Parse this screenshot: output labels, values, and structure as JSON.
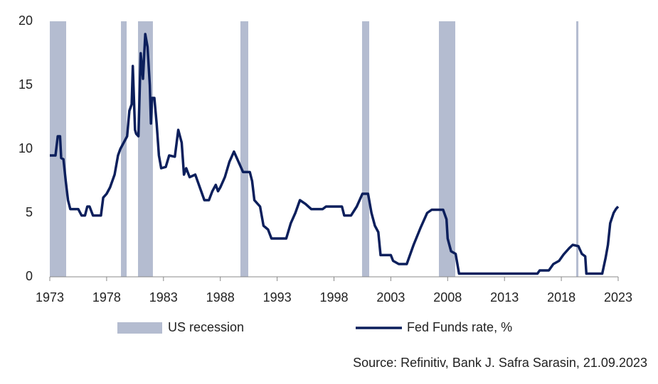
{
  "chart_data": {
    "type": "line",
    "x": [
      1973.0,
      1973.5,
      1973.7,
      1973.9,
      1974.0,
      1974.2,
      1974.4,
      1974.6,
      1974.8,
      1975.5,
      1975.8,
      1976.1,
      1976.3,
      1976.5,
      1976.8,
      1977.5,
      1977.7,
      1978.0,
      1978.3,
      1978.7,
      1979.0,
      1979.2,
      1979.5,
      1979.8,
      1980.0,
      1980.2,
      1980.3,
      1980.5,
      1980.6,
      1980.8,
      1981.0,
      1981.2,
      1981.4,
      1981.6,
      1981.8,
      1981.9,
      1982.0,
      1982.2,
      1982.4,
      1982.6,
      1982.8,
      1983.2,
      1983.5,
      1984.0,
      1984.3,
      1984.6,
      1984.8,
      1985.0,
      1985.3,
      1985.8,
      1986.2,
      1986.6,
      1987.0,
      1987.3,
      1987.6,
      1987.8,
      1988.0,
      1988.4,
      1988.8,
      1989.2,
      1989.6,
      1990.0,
      1990.6,
      1990.8,
      1991.0,
      1991.5,
      1991.8,
      1992.2,
      1992.5,
      1993.8,
      1994.2,
      1994.6,
      1995.0,
      1995.5,
      1996.0,
      1997.0,
      1997.3,
      1998.7,
      1998.9,
      1999.5,
      2000.0,
      2000.5,
      2001.0,
      2001.3,
      2001.6,
      2001.9,
      2002.1,
      2003.0,
      2003.2,
      2003.7,
      2004.4,
      2005.0,
      2005.6,
      2006.2,
      2006.6,
      2007.6,
      2007.9,
      2008.0,
      2008.3,
      2008.7,
      2009.0,
      2015.9,
      2016.1,
      2016.9,
      2017.3,
      2017.8,
      2018.2,
      2018.7,
      2019.0,
      2019.5,
      2019.8,
      2020.1,
      2020.2,
      2021.6,
      2021.9,
      2022.1,
      2022.3,
      2022.6,
      2022.8,
      2023.0
    ],
    "series": [
      {
        "name": "Fed Funds rate, %",
        "color": "#0c1f5c",
        "values": [
          9.5,
          9.5,
          11,
          11,
          9.3,
          9.2,
          7.5,
          6,
          5.3,
          5.3,
          4.8,
          4.8,
          5.5,
          5.5,
          4.8,
          4.8,
          6.2,
          6.5,
          7,
          8,
          9.5,
          10,
          10.5,
          11,
          13,
          13.5,
          16.5,
          11.5,
          11.2,
          11,
          17.5,
          15.5,
          19,
          18,
          15,
          12,
          14,
          14,
          12,
          9.5,
          8.5,
          8.6,
          9.5,
          9.4,
          11.5,
          10.5,
          8,
          8.5,
          7.8,
          8,
          7,
          6,
          6,
          6.7,
          7.2,
          6.7,
          7,
          7.8,
          9,
          9.8,
          9,
          8.2,
          8.2,
          7.5,
          6,
          5.5,
          4,
          3.7,
          3,
          3,
          4.2,
          5,
          6,
          5.7,
          5.3,
          5.3,
          5.5,
          5.5,
          4.8,
          4.8,
          5.5,
          6.5,
          6.5,
          5,
          4,
          3.5,
          1.7,
          1.7,
          1.25,
          1,
          1,
          2.5,
          3.8,
          5,
          5.25,
          5.25,
          4.5,
          3,
          2,
          1.8,
          0.25,
          0.25,
          0.5,
          0.5,
          1,
          1.25,
          1.75,
          2.25,
          2.5,
          2.4,
          1.8,
          1.6,
          0.25,
          0.25,
          1.5,
          2.5,
          4.2,
          5,
          5.3,
          5.5
        ]
      }
    ],
    "recessions": {
      "name": "US recession",
      "color": "#b4bcd0",
      "periods": [
        [
          1973.0,
          1974.44
        ],
        [
          1979.26,
          1979.76
        ],
        [
          1980.76,
          1982.07
        ],
        [
          1989.77,
          1990.46
        ],
        [
          2000.47,
          2001.1
        ],
        [
          2007.23,
          2008.67
        ],
        [
          2019.31,
          2019.5
        ]
      ]
    },
    "xlim": [
      1973,
      2023
    ],
    "xticks": [
      1973,
      1978,
      1983,
      1988,
      1993,
      1998,
      2003,
      2008,
      2013,
      2018,
      2023
    ],
    "ylim": [
      0,
      20
    ],
    "yticks": [
      0,
      5,
      10,
      15,
      20
    ],
    "source": "Source: Refinitiv, Bank J. Safra Sarasin, 21.09.2023"
  }
}
